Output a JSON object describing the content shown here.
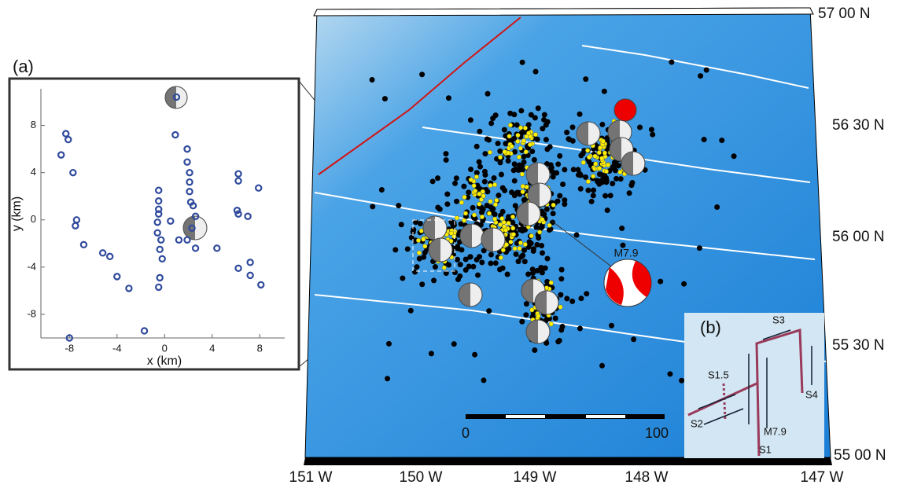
{
  "chart_data": {
    "type": "scatter",
    "title": "(a)",
    "x_label": "x (km)",
    "y_label": "y (km)",
    "xlim": [
      -10.4,
      10.1
    ],
    "ylim": [
      -10,
      11.1
    ],
    "xticks": [
      -8,
      -4,
      0,
      4,
      8
    ],
    "yticks": [
      -8,
      -4,
      0,
      4,
      8
    ],
    "color": "#2f4a9c",
    "x": [
      -8.7,
      -8.3,
      -8.1,
      -7.7,
      -7.4,
      -7.5,
      -6.8,
      -5.2,
      -4.6,
      -4.0,
      -3.0,
      -1.7,
      -8.0,
      -0.5,
      -0.5,
      -0.5,
      -0.5,
      -0.6,
      -0.6,
      -0.3,
      -0.4,
      -0.2,
      -0.4,
      -0.5,
      0.9,
      1.9,
      1.9,
      2.1,
      2.1,
      2.1,
      2.2,
      2.4,
      2.6,
      2.3,
      1.9,
      2.6,
      1.2,
      0.5,
      1.0,
      6.2,
      6.2,
      6.1,
      6.2,
      7.0,
      6.2,
      7.2,
      7.2,
      7.9,
      8.1,
      4.4
    ],
    "y": [
      5.5,
      7.3,
      6.8,
      4.0,
      0.0,
      -0.5,
      -2.1,
      -2.8,
      -3.1,
      -4.8,
      -5.8,
      -9.4,
      -10.0,
      2.5,
      1.6,
      0.9,
      0.5,
      -0.2,
      -1.1,
      -1.7,
      -2.5,
      -3.3,
      -4.9,
      -5.7,
      7.2,
      6.0,
      4.9,
      4.0,
      3.2,
      2.4,
      1.5,
      1.2,
      0.3,
      -0.7,
      -1.7,
      -2.4,
      -1.7,
      -0.1,
      10.4,
      3.9,
      3.3,
      0.8,
      0.5,
      0.3,
      -4.1,
      -3.6,
      -4.7,
      2.7,
      -5.5,
      -2.4
    ]
  },
  "map": {
    "lat_labels": [
      "57 00 N",
      "56 30 N",
      "56 00 N",
      "55 30 N",
      "55 00 N"
    ],
    "lon_labels": [
      "151 W",
      "150 W",
      "149 W",
      "148 W",
      "147 W"
    ],
    "scale_bar": [
      0,
      100
    ],
    "mainshock": "M7.9",
    "inset": {
      "label": "(b)",
      "segments": [
        "S1",
        "S1.5",
        "S2",
        "S3",
        "S4"
      ],
      "epicenter": "M7.9"
    }
  }
}
